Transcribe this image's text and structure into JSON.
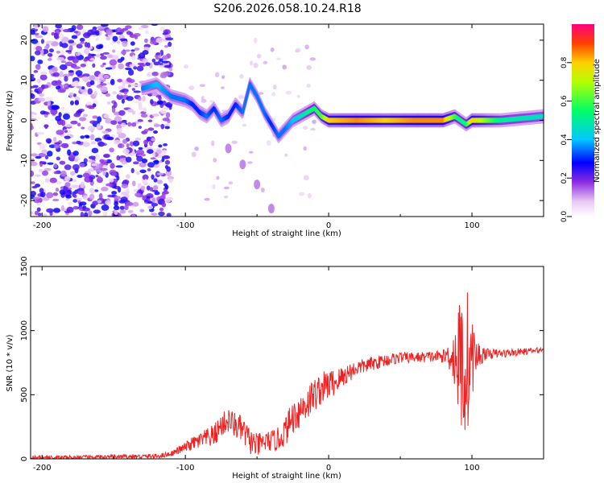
{
  "figure_title": "S206.2026.058.10.24.R18",
  "chart_data": [
    {
      "type": "heatmap",
      "title": "S206.2026.058.10.24.R18",
      "xlabel": "Height of straight line (km)",
      "ylabel": "Frequency (Hz)",
      "xlim": [
        -208,
        150
      ],
      "ylim": [
        -24,
        24
      ],
      "xticks": [
        -200,
        -100,
        0,
        100
      ],
      "xtick_labels": [
        "-200",
        "-100",
        "0",
        "100"
      ],
      "yticks": [
        -20,
        -10,
        0,
        10,
        20
      ],
      "ytick_labels": [
        "-20",
        "-10",
        "0",
        "10",
        "20"
      ],
      "colorbar": {
        "label": "Normalized spectral amplitude",
        "range": [
          0,
          1
        ],
        "ticks": [
          0.0,
          0.2,
          0.4,
          0.6,
          0.8
        ],
        "tick_labels": [
          "0.0",
          "0.2",
          "0.4",
          "0.6",
          "0.8"
        ]
      },
      "ridge": {
        "x": [
          -130,
          -120,
          -110,
          -100,
          -95,
          -90,
          -85,
          -80,
          -75,
          -70,
          -65,
          -60,
          -55,
          -50,
          -45,
          -40,
          -35,
          -30,
          -25,
          -20,
          -15,
          -10,
          -5,
          0,
          20,
          40,
          60,
          80,
          88,
          92,
          96,
          100,
          120,
          150
        ],
        "freq": [
          8,
          9,
          6,
          5,
          4,
          2,
          1,
          3,
          0,
          1,
          4,
          2,
          9,
          6,
          2,
          -1,
          -4,
          -2,
          0,
          1,
          2,
          3,
          1,
          0,
          0,
          0,
          0,
          0,
          1,
          0,
          -1,
          0,
          0,
          1
        ],
        "amplitude": [
          0.35,
          0.4,
          0.35,
          0.35,
          0.3,
          0.3,
          0.35,
          0.3,
          0.35,
          0.3,
          0.3,
          0.35,
          0.35,
          0.35,
          0.35,
          0.3,
          0.35,
          0.35,
          0.4,
          0.45,
          0.5,
          0.55,
          0.6,
          0.8,
          0.85,
          0.8,
          0.85,
          0.85,
          0.6,
          0.5,
          0.55,
          0.8,
          0.5,
          0.45
        ]
      },
      "branch": {
        "x": [
          -70,
          -60,
          -50,
          -40
        ],
        "freq": [
          -7,
          -11,
          -16,
          -22
        ]
      },
      "noise_region": {
        "x_range": [
          -208,
          -110
        ],
        "freq_range": [
          -24,
          24
        ],
        "amplitude_range": [
          0.0,
          0.25
        ]
      }
    },
    {
      "type": "line",
      "xlabel": "Height of straight line (km)",
      "ylabel": "SNR (10 * v/v)",
      "xlim": [
        -208,
        150
      ],
      "ylim": [
        0,
        1500
      ],
      "xticks": [
        -200,
        -100,
        0,
        100
      ],
      "xtick_labels": [
        "-200",
        "-100",
        "0",
        "100"
      ],
      "yticks": [
        0,
        500,
        1000,
        1500
      ],
      "ytick_labels": [
        "0",
        "500",
        "1000",
        "1500"
      ],
      "color": "#ee2222",
      "series": [
        {
          "name": "SNR",
          "envelope_x": [
            -208,
            -180,
            -150,
            -120,
            -110,
            -100,
            -95,
            -90,
            -80,
            -75,
            -70,
            -65,
            -60,
            -55,
            -50,
            -45,
            -40,
            -35,
            -30,
            -25,
            -20,
            -15,
            -10,
            -5,
            0,
            5,
            10,
            15,
            20,
            30,
            40,
            50,
            60,
            70,
            80,
            85,
            88,
            90,
            92,
            95,
            98,
            100,
            103,
            106,
            110,
            120,
            130,
            140,
            150
          ],
          "envelope_y": [
            10,
            10,
            15,
            20,
            40,
            90,
            120,
            140,
            180,
            260,
            300,
            260,
            220,
            140,
            100,
            130,
            140,
            150,
            220,
            330,
            380,
            440,
            500,
            550,
            580,
            600,
            640,
            680,
            710,
            740,
            770,
            790,
            790,
            795,
            800,
            810,
            790,
            770,
            760,
            750,
            760,
            790,
            800,
            810,
            820,
            820,
            830,
            840,
            850
          ],
          "noise_amplitude_x": [
            -208,
            -110,
            -100,
            -80,
            -60,
            -40,
            -20,
            0,
            20,
            60,
            80,
            86,
            90,
            95,
            100,
            104,
            110,
            150
          ],
          "noise_amplitude_y": [
            15,
            20,
            40,
            90,
            110,
            80,
            150,
            120,
            60,
            40,
            50,
            150,
            400,
            750,
            300,
            120,
            40,
            20
          ]
        }
      ]
    }
  ]
}
